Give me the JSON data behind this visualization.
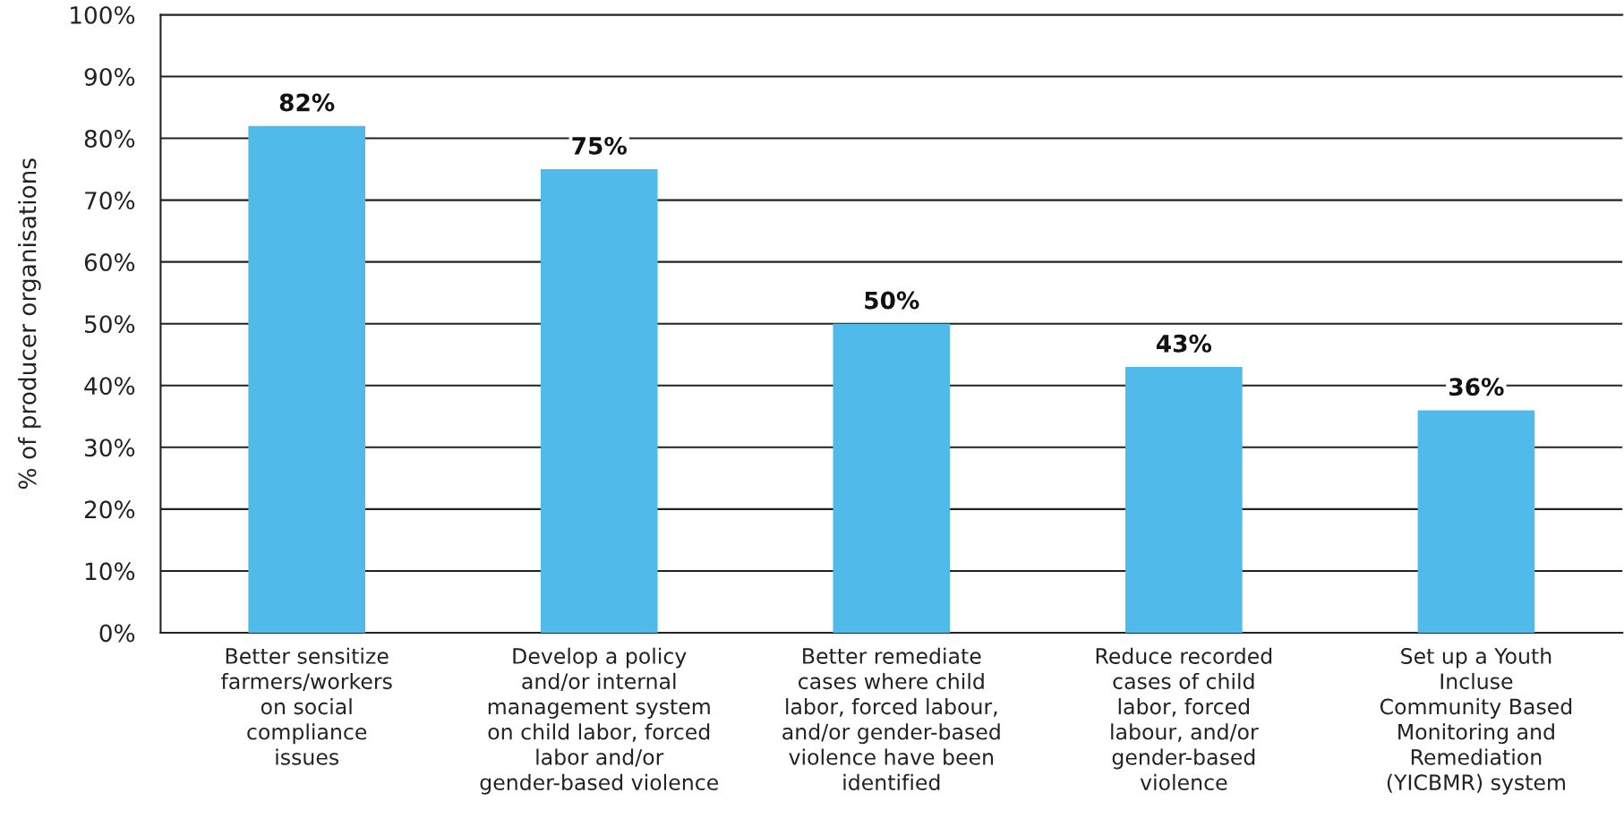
{
  "chart_data": {
    "type": "bar",
    "ylabel": "% of producer organisations",
    "categories": [
      "Better sensitize\nfarmers/workers\non social\ncompliance\nissues",
      "Develop a policy\nand/or internal\nmanagement system\non child labor, forced\nlabor and/or\ngender-based violence",
      "Better remediate\ncases where child\nlabor, forced labour,\nand/or gender-based\nviolence have been\nidentified",
      "Reduce recorded\ncases of child\nlabor, forced\nlabour, and/or\ngender-based\nviolence",
      "Set up a Youth\nIncluse\nCommunity Based\nMonitoring and\nRemediation\n(YICBMR) system"
    ],
    "values": [
      82,
      75,
      50,
      43,
      36
    ],
    "value_labels": [
      "82%",
      "75%",
      "50%",
      "43%",
      "36%"
    ],
    "color": "#50bbeb",
    "ylim": [
      0,
      100
    ],
    "yticks": [
      {
        "value": 0,
        "label": "0%"
      },
      {
        "value": 10,
        "label": "10%"
      },
      {
        "value": 20,
        "label": "20%"
      },
      {
        "value": 30,
        "label": "30%"
      },
      {
        "value": 40,
        "label": "40%"
      },
      {
        "value": 50,
        "label": "50%"
      },
      {
        "value": 60,
        "label": "60%"
      },
      {
        "value": 70,
        "label": "70%"
      },
      {
        "value": 80,
        "label": "80%"
      },
      {
        "value": 90,
        "label": "90%"
      },
      {
        "value": 100,
        "label": "100%"
      }
    ],
    "grid": "y",
    "legend": false
  }
}
